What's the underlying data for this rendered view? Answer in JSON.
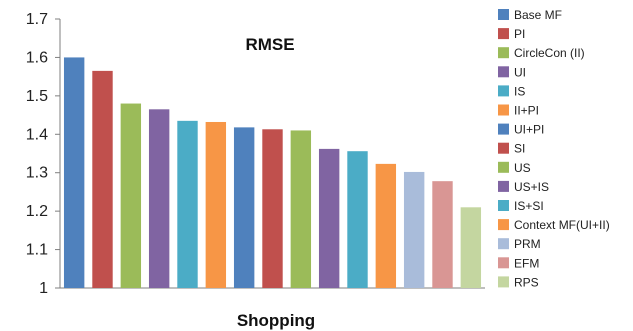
{
  "chart_data": {
    "type": "bar",
    "title": "RMSE",
    "xlabel": "Shopping",
    "ylabel": "",
    "ylim": [
      1,
      1.7
    ],
    "yticks": [
      1,
      1.1,
      1.2,
      1.3,
      1.4,
      1.5,
      1.6,
      1.7
    ],
    "ytick_labels": [
      "1",
      "1.1",
      "1.2",
      "1.3",
      "1.4",
      "1.5",
      "1.6",
      "1.7"
    ],
    "grid": false,
    "legend_position": "right",
    "series": [
      {
        "name": "Base MF",
        "value": 1.6,
        "color": "#4F81BD"
      },
      {
        "name": "PI",
        "value": 1.565,
        "color": "#C0504D"
      },
      {
        "name": "CircleCon (II)",
        "value": 1.48,
        "color": "#9BBB59"
      },
      {
        "name": "UI",
        "value": 1.465,
        "color": "#8064A2"
      },
      {
        "name": "IS",
        "value": 1.435,
        "color": "#4BACC6"
      },
      {
        "name": "II+PI",
        "value": 1.432,
        "color": "#F79646"
      },
      {
        "name": "UI+PI",
        "value": 1.418,
        "color": "#4F81BD"
      },
      {
        "name": "SI",
        "value": 1.413,
        "color": "#C0504D"
      },
      {
        "name": "US",
        "value": 1.41,
        "color": "#9BBB59"
      },
      {
        "name": "US+IS",
        "value": 1.362,
        "color": "#8064A2"
      },
      {
        "name": "IS+SI",
        "value": 1.356,
        "color": "#4BACC6"
      },
      {
        "name": "Context MF(UI+II)",
        "value": 1.323,
        "color": "#F79646"
      },
      {
        "name": "PRM",
        "value": 1.302,
        "color": "#A9BCDA"
      },
      {
        "name": "EFM",
        "value": 1.278,
        "color": "#D99694"
      },
      {
        "name": "RPS",
        "value": 1.21,
        "color": "#C4D6A0"
      }
    ]
  }
}
